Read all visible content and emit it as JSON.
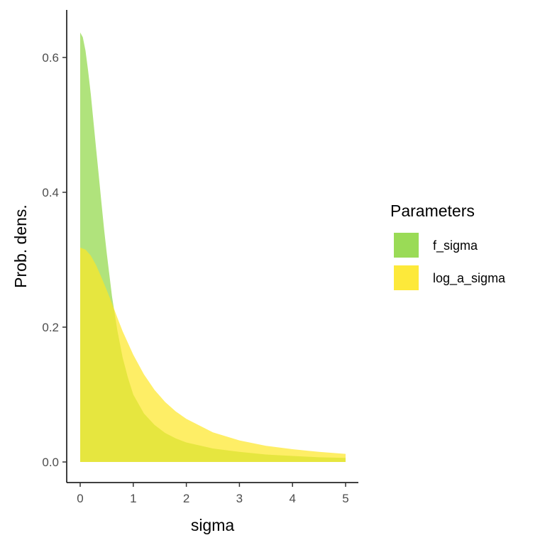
{
  "chart_data": {
    "type": "area",
    "xlabel": "sigma",
    "ylabel": "Prob. dens.",
    "xlim": [
      0,
      5
    ],
    "ylim": [
      0,
      0.65
    ],
    "x_ticks": [
      "0",
      "1",
      "2",
      "3",
      "4",
      "5"
    ],
    "y_ticks": [
      "0.0",
      "0.2",
      "0.4",
      "0.6"
    ],
    "grid": false,
    "legend_position": "right",
    "legend_title": "Parameters",
    "series": [
      {
        "name": "f_sigma",
        "color": "#8fd744",
        "x": [
          0,
          0.05,
          0.1,
          0.15,
          0.2,
          0.25,
          0.3,
          0.35,
          0.4,
          0.45,
          0.5,
          0.6,
          0.7,
          0.8,
          0.9,
          1.0,
          1.2,
          1.4,
          1.6,
          1.8,
          2.0,
          2.5,
          3.0,
          3.5,
          4.0,
          4.5,
          5.0
        ],
        "values": [
          0.637,
          0.63,
          0.61,
          0.58,
          0.545,
          0.505,
          0.465,
          0.425,
          0.385,
          0.345,
          0.31,
          0.245,
          0.195,
          0.155,
          0.125,
          0.1,
          0.072,
          0.055,
          0.043,
          0.035,
          0.029,
          0.02,
          0.015,
          0.011,
          0.009,
          0.007,
          0.006
        ]
      },
      {
        "name": "log_a_sigma",
        "color": "#fde725",
        "x": [
          0,
          0.1,
          0.2,
          0.3,
          0.4,
          0.5,
          0.6,
          0.7,
          0.8,
          1.0,
          1.2,
          1.4,
          1.6,
          1.8,
          2.0,
          2.5,
          3.0,
          3.5,
          4.0,
          4.5,
          5.0
        ],
        "values": [
          0.318,
          0.315,
          0.306,
          0.292,
          0.274,
          0.255,
          0.235,
          0.214,
          0.194,
          0.159,
          0.13,
          0.107,
          0.089,
          0.075,
          0.064,
          0.044,
          0.032,
          0.024,
          0.019,
          0.015,
          0.012
        ]
      }
    ]
  }
}
